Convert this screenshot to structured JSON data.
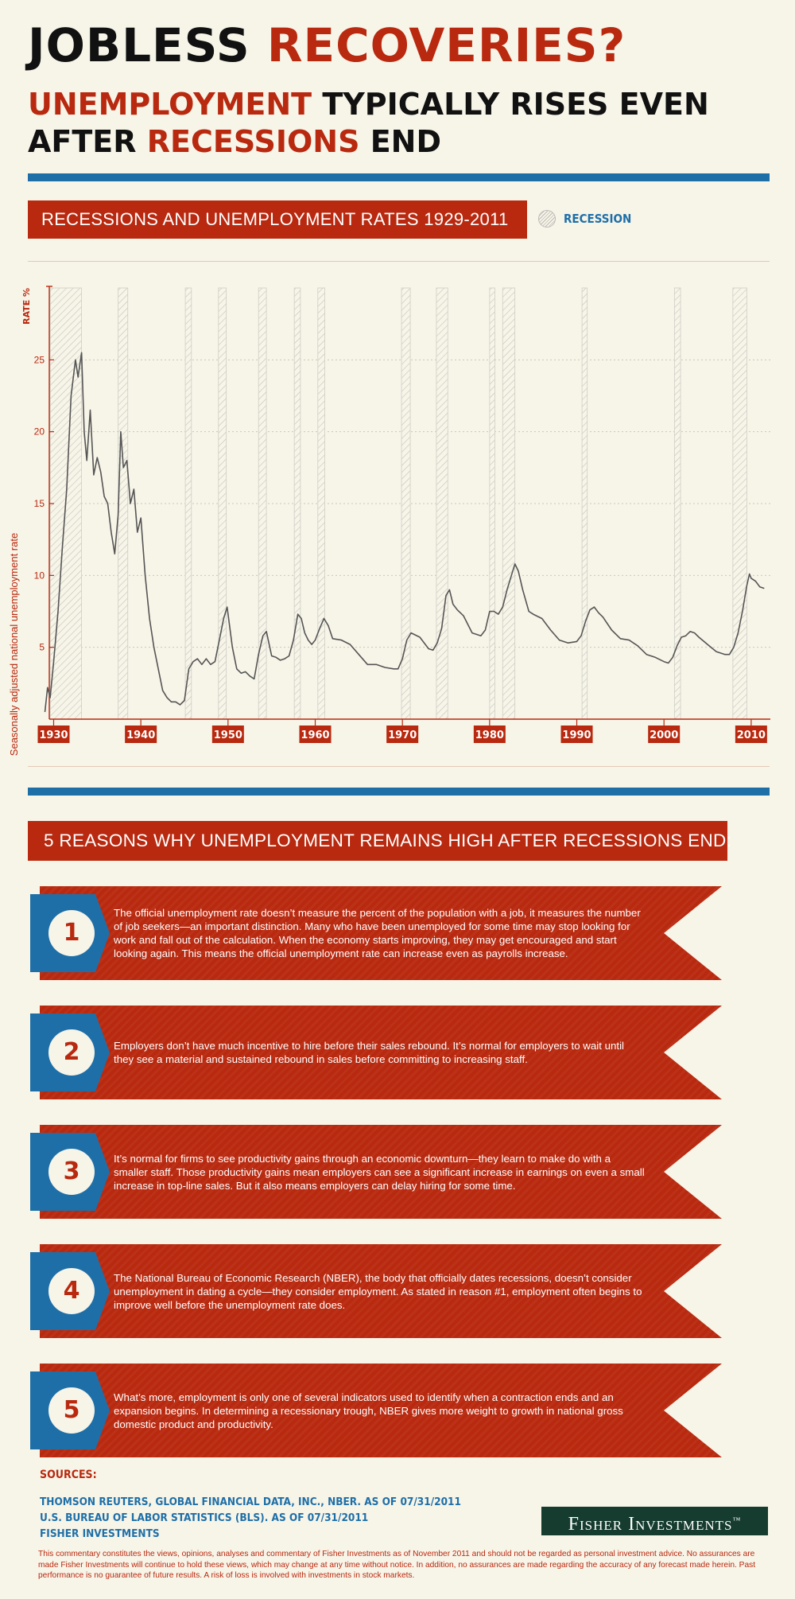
{
  "header": {
    "title_word1": "JOBLESS",
    "title_word2": "RECOVERIES?",
    "subtitle_word1": "UNEMPLOYMENT",
    "subtitle_rest1": " TYPICALLY RISES EVEN",
    "subtitle_word2": "AFTER ",
    "subtitle_word3": "RECESSIONS",
    "subtitle_rest2": " END"
  },
  "colors": {
    "red": "#b8290f",
    "blue": "#1e6fa8",
    "background": "#f7f4e8",
    "line": "#555555",
    "logo_green": "#153c2f"
  },
  "chart_title": "RECESSIONS AND UNEMPLOYMENT RATES 1929-2011",
  "legend": {
    "label": "RECESSION",
    "swatch": "hatched-circle-icon"
  },
  "chart_data": {
    "type": "line",
    "title": "RECESSIONS AND UNEMPLOYMENT RATES 1929-2011",
    "ylabel": "Seasonally adjusted national unemployment rate",
    "yunit": "RATE %",
    "xlim": [
      1929,
      2011
    ],
    "ylim": [
      0,
      30
    ],
    "yticks": [
      5,
      10,
      15,
      20,
      25
    ],
    "xticks": [
      1930,
      1940,
      1950,
      1960,
      1970,
      1980,
      1990,
      2000,
      2010
    ],
    "grid": "horizontal dotted",
    "recessions": [
      [
        1929.6,
        1933.2
      ],
      [
        1937.4,
        1938.5
      ],
      [
        1945.1,
        1945.8
      ],
      [
        1948.9,
        1949.8
      ],
      [
        1953.5,
        1954.4
      ],
      [
        1957.6,
        1958.3
      ],
      [
        1960.3,
        1961.1
      ],
      [
        1969.9,
        1970.9
      ],
      [
        1973.9,
        1975.2
      ],
      [
        1980.0,
        1980.6
      ],
      [
        1981.5,
        1982.9
      ],
      [
        1990.6,
        1991.2
      ],
      [
        2001.2,
        2001.9
      ],
      [
        2007.9,
        2009.5
      ]
    ],
    "series": [
      {
        "x": [
          1929.0,
          1929.3,
          1929.6,
          1930.0,
          1930.5,
          1931.0,
          1931.5,
          1932.0,
          1932.5,
          1932.8,
          1933.2,
          1933.5,
          1933.8,
          1934.2,
          1934.6,
          1935.0,
          1935.4,
          1935.8,
          1936.2,
          1936.6,
          1937.0,
          1937.4,
          1937.7,
          1938.0,
          1938.4,
          1938.8,
          1939.2,
          1939.6,
          1940.0,
          1940.5,
          1941.0,
          1941.5,
          1942.0,
          1942.5,
          1943.0,
          1943.5,
          1944.0,
          1944.5,
          1945.0,
          1945.5,
          1946.0,
          1946.5,
          1947.0,
          1947.5,
          1948.0,
          1948.5,
          1949.0,
          1949.5,
          1949.9,
          1950.5,
          1951.0,
          1951.5,
          1952.0,
          1952.5,
          1953.0,
          1953.5,
          1954.0,
          1954.4,
          1955.0,
          1955.5,
          1956.0,
          1956.5,
          1957.0,
          1957.5,
          1958.0,
          1958.4,
          1958.8,
          1959.2,
          1959.6,
          1960.0,
          1960.5,
          1961.0,
          1961.5,
          1962.0,
          1963.0,
          1964.0,
          1965.0,
          1966.0,
          1967.0,
          1968.0,
          1969.0,
          1969.5,
          1970.0,
          1970.5,
          1971.0,
          1972.0,
          1973.0,
          1973.5,
          1974.0,
          1974.5,
          1975.0,
          1975.4,
          1975.8,
          1976.3,
          1977.0,
          1978.0,
          1979.0,
          1979.5,
          1980.0,
          1980.5,
          1981.0,
          1981.5,
          1982.0,
          1982.5,
          1982.9,
          1983.3,
          1983.8,
          1984.5,
          1985.0,
          1986.0,
          1987.0,
          1988.0,
          1989.0,
          1990.0,
          1990.5,
          1991.0,
          1991.5,
          1992.0,
          1992.5,
          1993.0,
          1994.0,
          1995.0,
          1996.0,
          1997.0,
          1998.0,
          1999.0,
          2000.0,
          2000.5,
          2001.0,
          2001.5,
          2002.0,
          2002.5,
          2003.0,
          2003.5,
          2004.0,
          2005.0,
          2006.0,
          2007.0,
          2007.5,
          2008.0,
          2008.5,
          2009.0,
          2009.5,
          2009.8,
          2010.0,
          2010.5,
          2011.0,
          2011.5
        ],
        "values": [
          0.5,
          2.2,
          1.5,
          4.0,
          7.5,
          12.0,
          16.0,
          22.5,
          25.0,
          23.8,
          25.5,
          20.0,
          18.0,
          21.5,
          17.0,
          18.2,
          17.2,
          15.5,
          15.0,
          13.0,
          11.5,
          14.2,
          20.0,
          17.5,
          18.0,
          15.0,
          16.0,
          13.0,
          14.0,
          10.0,
          7.0,
          5.0,
          3.5,
          2.0,
          1.5,
          1.2,
          1.2,
          1.0,
          1.3,
          3.5,
          4.0,
          4.2,
          3.8,
          4.2,
          3.8,
          4.0,
          5.5,
          7.0,
          7.8,
          5.0,
          3.5,
          3.2,
          3.3,
          3.0,
          2.8,
          4.5,
          5.8,
          6.1,
          4.4,
          4.3,
          4.1,
          4.2,
          4.4,
          5.5,
          7.3,
          7.0,
          6.0,
          5.5,
          5.2,
          5.5,
          6.3,
          7.0,
          6.5,
          5.6,
          5.5,
          5.2,
          4.5,
          3.8,
          3.8,
          3.6,
          3.5,
          3.5,
          4.2,
          5.5,
          6.0,
          5.7,
          4.9,
          4.8,
          5.3,
          6.3,
          8.6,
          9.0,
          8.0,
          7.6,
          7.2,
          6.0,
          5.8,
          6.2,
          7.5,
          7.5,
          7.3,
          7.8,
          9.0,
          10.0,
          10.8,
          10.3,
          9.0,
          7.5,
          7.3,
          7.0,
          6.2,
          5.5,
          5.3,
          5.4,
          5.8,
          6.8,
          7.6,
          7.8,
          7.4,
          7.1,
          6.2,
          5.6,
          5.5,
          5.1,
          4.5,
          4.3,
          4.0,
          3.9,
          4.3,
          5.1,
          5.7,
          5.8,
          6.1,
          6.0,
          5.7,
          5.2,
          4.7,
          4.5,
          4.5,
          5.0,
          6.0,
          7.5,
          9.3,
          10.1,
          9.8,
          9.6,
          9.2,
          9.1
        ]
      }
    ]
  },
  "reasons_title": "5 REASONS WHY UNEMPLOYMENT REMAINS HIGH AFTER RECESSIONS END:",
  "reasons": [
    {
      "num": "1",
      "text": "The official unemployment rate doesn’t measure the percent of the population with a job, it measures the number of job seekers—an important distinction. Many who have been unemployed for some time may stop looking for work and fall out of the calculation. When the economy starts improving, they may get encouraged and start looking again. This means the official unemployment rate can increase even as payrolls increase."
    },
    {
      "num": "2",
      "text": "Employers don’t have much incentive to hire before their sales rebound. It’s normal for employers to wait until they see a material and sustained rebound in sales before committing to increasing staff."
    },
    {
      "num": "3",
      "text": "It’s normal for firms to see productivity gains through an economic downturn—they learn to make do with a smaller staff. Those productivity gains mean employers can see a significant increase in earnings on even a small increase in top-line sales. But it also means employers can delay hiring for some time."
    },
    {
      "num": "4",
      "text": "The National Bureau of Economic Research (NBER), the body that officially dates recessions, doesn’t consider unemployment in dating a cycle—they consider employment. As stated in reason #1, employment often begins to improve well before the unemployment rate does."
    },
    {
      "num": "5",
      "text": "What’s more, employment is only one of several indicators used to identify when a contraction ends and an expansion begins. In determining a recessionary trough, NBER gives more weight to growth in national gross domestic product and productivity."
    }
  ],
  "sources": {
    "label": "SOURCES:",
    "lines": [
      "THOMSON REUTERS, GLOBAL FINANCIAL DATA, INC., NBER. AS OF 07/31/2011",
      "U.S. BUREAU OF LABOR STATISTICS (BLS). AS OF 07/31/2011",
      "FISHER INVESTMENTS"
    ]
  },
  "logo": {
    "text": "Fisher Investments",
    "mark": "™"
  },
  "disclaimer": "This commentary constitutes the views, opinions, analyses and commentary of Fisher Investments as of November 2011 and should not be regarded as personal investment advice. No assurances are made Fisher Investments will continue to hold these views, which may change at any time without notice. In addition, no assurances are made regarding the accuracy of any forecast made herein. Past performance is no guarantee of future results. A risk of loss is involved with investments in stock markets."
}
